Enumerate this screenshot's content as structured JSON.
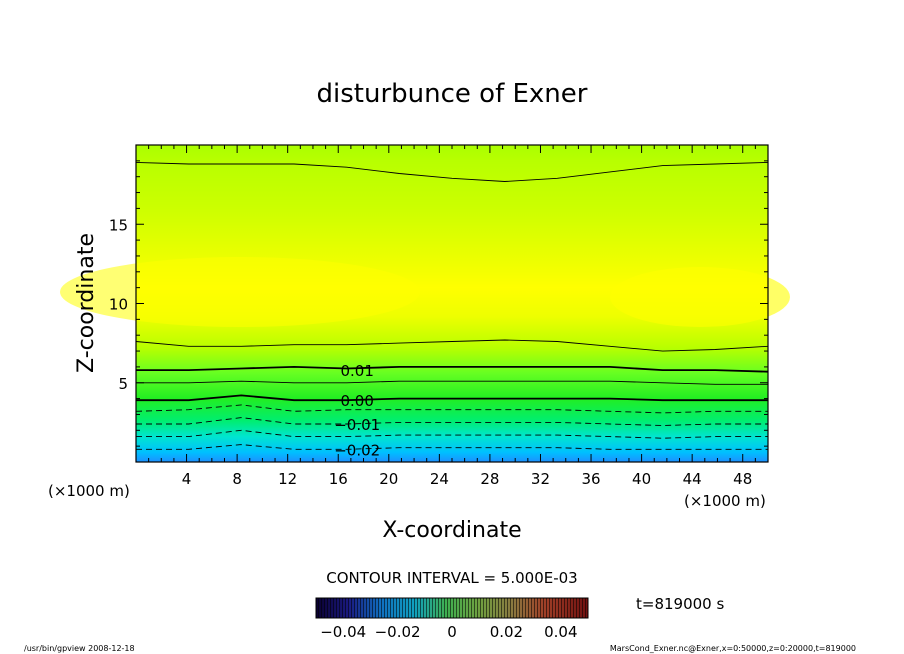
{
  "chart_data": {
    "type": "contour",
    "title": "disturbunce of Exner",
    "xlabel": "X-coordinate",
    "ylabel": "Z-coordinate",
    "x_unit": "(×1000 m)",
    "x_unit_right": "(×1000 m)",
    "x_ticks": [
      "4",
      "8",
      "12",
      "16",
      "20",
      "24",
      "28",
      "32",
      "36",
      "40",
      "44",
      "48"
    ],
    "y_ticks": [
      "5",
      "10",
      "15"
    ],
    "xlim": [
      0,
      50
    ],
    "ylim": [
      0,
      20
    ],
    "contour_interval_text": "CONTOUR INTERVAL = 5.000E-03",
    "time_text": "t=819000 s",
    "colorbar_ticks": [
      "−0.04",
      "−0.02",
      "0",
      "0.02",
      "0.04"
    ],
    "colorbar_range": [
      -0.05,
      0.05
    ],
    "contour_labels": [
      {
        "text": "0.01",
        "x": 17.5,
        "z": 5.8
      },
      {
        "text": "0.00",
        "x": 17.5,
        "z": 3.9
      },
      {
        "text": "−0.01",
        "x": 17.5,
        "z": 2.4
      },
      {
        "text": "−0.02",
        "x": 17.5,
        "z": 0.8
      }
    ],
    "contour_levels_z": [
      {
        "level": 0.01,
        "z": [
          5.8,
          5.8,
          5.9,
          6.0,
          5.9,
          6.0,
          6.0,
          6.0,
          6.0,
          6.0,
          5.8,
          5.8,
          5.7
        ],
        "dashed": false,
        "bold": true
      },
      {
        "level": 0.005,
        "z": [
          7.6,
          7.3,
          7.3,
          7.4,
          7.4,
          7.5,
          7.6,
          7.7,
          7.6,
          7.3,
          7.0,
          7.1,
          7.3
        ],
        "dashed": false,
        "bold": false
      },
      {
        "level": 0.015,
        "z": [
          18.9,
          18.8,
          18.8,
          18.8,
          18.6,
          18.2,
          17.9,
          17.7,
          17.9,
          18.3,
          18.7,
          18.8,
          18.9
        ],
        "dashed": false,
        "bold": false
      },
      {
        "level": 0.005,
        "z": [
          5.0,
          5.0,
          5.1,
          5.0,
          5.0,
          5.1,
          5.1,
          5.1,
          5.1,
          5.1,
          5.0,
          4.9,
          4.9
        ],
        "dashed": false,
        "bold": false
      },
      {
        "level": 0.0,
        "z": [
          3.9,
          3.9,
          4.2,
          3.9,
          3.9,
          4.0,
          4.0,
          4.0,
          4.0,
          4.0,
          3.9,
          3.9,
          3.9
        ],
        "dashed": false,
        "bold": true
      },
      {
        "level": -0.005,
        "z": [
          3.2,
          3.3,
          3.6,
          3.2,
          3.3,
          3.3,
          3.3,
          3.3,
          3.3,
          3.2,
          3.1,
          3.2,
          3.2
        ],
        "dashed": true,
        "bold": false
      },
      {
        "level": -0.01,
        "z": [
          2.4,
          2.4,
          2.8,
          2.4,
          2.4,
          2.5,
          2.5,
          2.5,
          2.5,
          2.4,
          2.3,
          2.4,
          2.4
        ],
        "dashed": true,
        "bold": false
      },
      {
        "level": -0.015,
        "z": [
          1.6,
          1.6,
          2.0,
          1.6,
          1.6,
          1.7,
          1.7,
          1.7,
          1.7,
          1.6,
          1.5,
          1.6,
          1.6
        ],
        "dashed": true,
        "bold": false
      },
      {
        "level": -0.02,
        "z": [
          0.8,
          0.8,
          1.1,
          0.8,
          0.8,
          0.9,
          0.9,
          0.9,
          0.9,
          0.8,
          0.8,
          0.8,
          0.8
        ],
        "dashed": true,
        "bold": false
      }
    ],
    "colors": {
      "top": "#aaff00",
      "upper": "#ccff00",
      "core": "#ffff00",
      "mid": "#66ff33",
      "green": "#00ee44",
      "teal": "#00ddaa",
      "cyan": "#00ccff",
      "blue": "#0099ff"
    }
  },
  "footer": {
    "left": "/usr/bin/gpview   2008-12-18",
    "right": "MarsCond_Exner.nc@Exner,x=0:50000,z=0:20000,t=819000"
  }
}
